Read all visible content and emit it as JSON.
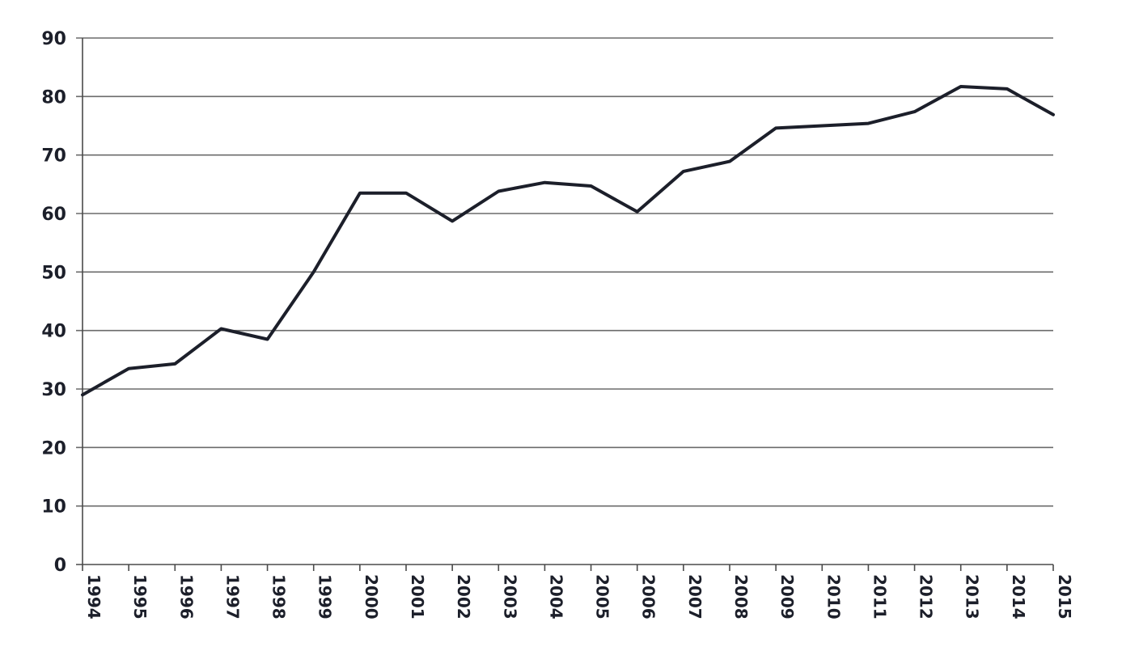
{
  "chart_data": {
    "type": "line",
    "title": "",
    "xlabel": "",
    "ylabel": "",
    "categories": [
      "1994",
      "1995",
      "1996",
      "1997",
      "1998",
      "1999",
      "2000",
      "2001",
      "2002",
      "2003",
      "2004",
      "2005",
      "2006",
      "2007",
      "2008",
      "2009",
      "2010",
      "2011",
      "2012",
      "2013",
      "2014",
      "2015"
    ],
    "series": [
      {
        "values": [
          29,
          33.5,
          34.3,
          40.3,
          38.5,
          50,
          63.5,
          63.5,
          58.7,
          63.8,
          65.3,
          64.7,
          60.3,
          67.2,
          68.9,
          74.6,
          75,
          75.4,
          77.4,
          81.7,
          81.3,
          76.9
        ],
        "color": "#1c1f2a"
      }
    ],
    "ylim": [
      0,
      90
    ],
    "yticks": [
      "0",
      "10",
      "20",
      "30",
      "40",
      "50",
      "60",
      "70",
      "80",
      "90"
    ],
    "grid": true,
    "legend": "none"
  }
}
